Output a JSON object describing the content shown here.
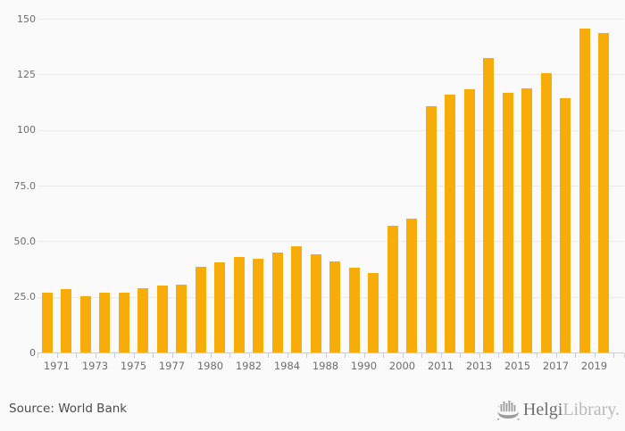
{
  "chart_data": {
    "type": "bar",
    "bar_color": "#F8AC09",
    "categories": [
      1971,
      1972,
      1973,
      1974,
      1975,
      1976,
      1977,
      1979,
      1980,
      1981,
      1982,
      1983,
      1984,
      1985,
      1988,
      1989,
      1990,
      1991,
      2000,
      2001,
      2011,
      2012,
      2013,
      2014,
      2015,
      2016,
      2017,
      2018,
      2019,
      2020
    ],
    "values": [
      26.8,
      28.4,
      25.4,
      26.8,
      27.0,
      29.0,
      30.0,
      30.3,
      38.7,
      40.7,
      43.0,
      42.3,
      44.9,
      47.8,
      44.1,
      40.8,
      38.2,
      35.6,
      57.0,
      60.1,
      110.8,
      115.8,
      118.5,
      132.4,
      116.6,
      118.7,
      125.6,
      114.3,
      145.4,
      143.4
    ],
    "x_tick_labels": [
      "1971",
      "1973",
      "1975",
      "1977",
      "1980",
      "1982",
      "1984",
      "1988",
      "1990",
      "2000",
      "2011",
      "2013",
      "2015",
      "2017",
      "2019"
    ],
    "y_axis": {
      "ticks": [
        0,
        25,
        50,
        75,
        100,
        125,
        150
      ],
      "labels": [
        "0",
        "25.0",
        "50.0",
        "75.0",
        "100",
        "125",
        "150"
      ]
    },
    "ylim": [
      0,
      150
    ],
    "grid": "horizontal",
    "legend": "none",
    "source": "Source: World Bank"
  },
  "logo": {
    "helgi": "Helgi",
    "library": "Library."
  },
  "colors": {
    "bar": "#F8AC09",
    "background": "#FAFAFA",
    "gridline": "#E9E9E9",
    "axis": "#C5CEDF",
    "axis_label": "#6E6E6E",
    "source_text": "#4C4C4C",
    "logo_icon": "#9A9A9A"
  }
}
